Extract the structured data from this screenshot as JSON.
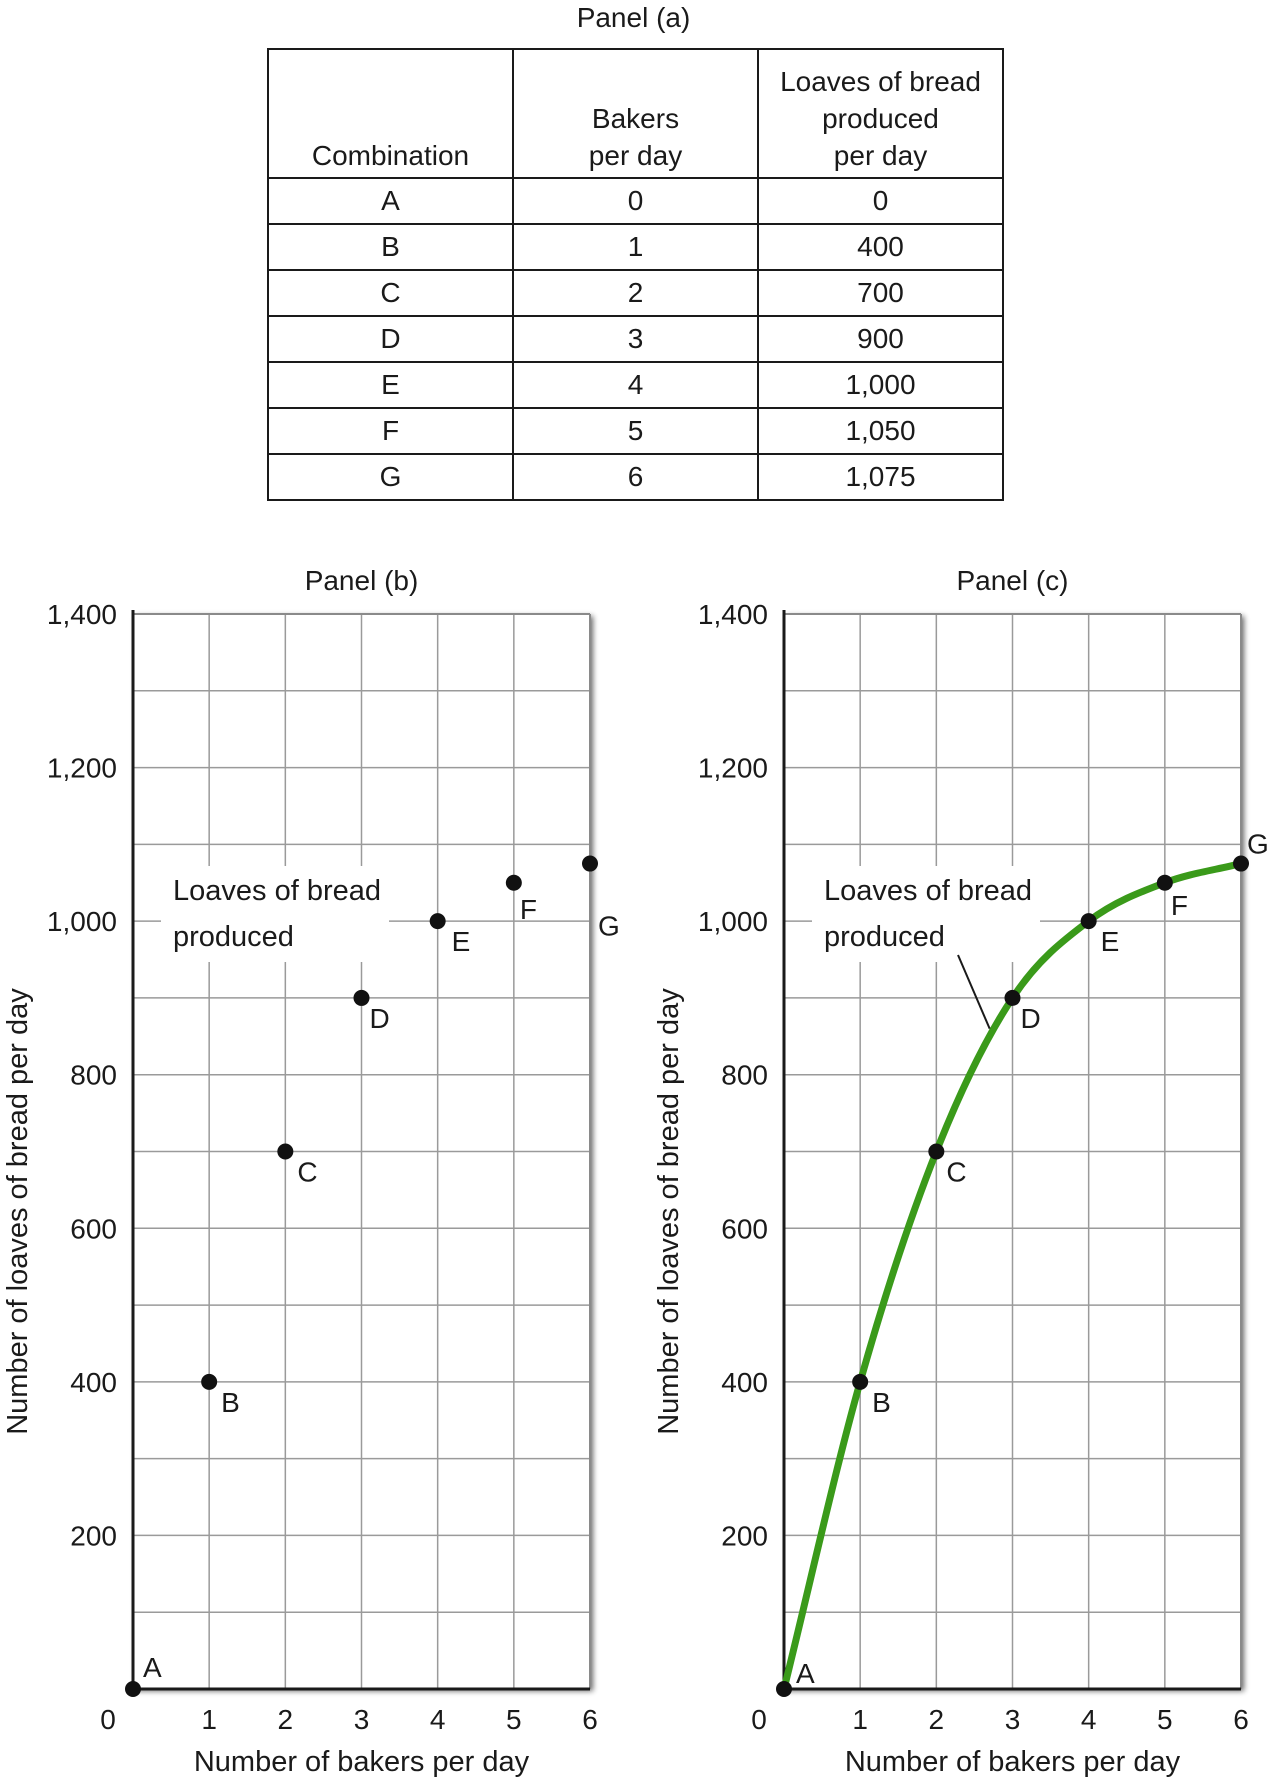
{
  "panel_a": {
    "title": "Panel (a)",
    "headers": [
      "Combination",
      "Bakers per day",
      "Loaves of bread produced per day"
    ],
    "header_lines": [
      [
        "Combination"
      ],
      [
        "Bakers",
        "per day"
      ],
      [
        "Loaves of bread",
        "produced",
        "per day"
      ]
    ],
    "rows": [
      [
        "A",
        "0",
        "0"
      ],
      [
        "B",
        "1",
        "400"
      ],
      [
        "C",
        "2",
        "700"
      ],
      [
        "D",
        "3",
        "900"
      ],
      [
        "E",
        "4",
        "1,000"
      ],
      [
        "F",
        "5",
        "1,050"
      ],
      [
        "G",
        "6",
        "1,075"
      ]
    ]
  },
  "chart_data": [
    {
      "type": "scatter",
      "title": "Panel (b)",
      "xlabel": "Number of bakers per day",
      "ylabel": "Number of loaves of bread per day",
      "xlim": [
        0,
        6
      ],
      "ylim": [
        0,
        1400
      ],
      "x_ticks": [
        "0",
        "1",
        "2",
        "3",
        "4",
        "5",
        "6"
      ],
      "y_ticks": [
        "200",
        "400",
        "600",
        "800",
        "1,000",
        "1,200",
        "1,400"
      ],
      "grid": true,
      "annotation": [
        "Loaves of bread",
        "produced"
      ],
      "points": [
        {
          "label": "A",
          "x": 0,
          "y": 0
        },
        {
          "label": "B",
          "x": 1,
          "y": 400
        },
        {
          "label": "C",
          "x": 2,
          "y": 700
        },
        {
          "label": "D",
          "x": 3,
          "y": 900
        },
        {
          "label": "E",
          "x": 4,
          "y": 1000
        },
        {
          "label": "F",
          "x": 5,
          "y": 1050
        },
        {
          "label": "G",
          "x": 6,
          "y": 1075
        }
      ]
    },
    {
      "type": "line",
      "title": "Panel (c)",
      "xlabel": "Number of bakers per day",
      "ylabel": "Number of loaves of bread per day",
      "xlim": [
        0,
        6
      ],
      "ylim": [
        0,
        1400
      ],
      "x_ticks": [
        "0",
        "1",
        "2",
        "3",
        "4",
        "5",
        "6"
      ],
      "y_ticks": [
        "200",
        "400",
        "600",
        "800",
        "1,000",
        "1,200",
        "1,400"
      ],
      "grid": true,
      "annotation": [
        "Loaves of bread",
        "produced"
      ],
      "line_color": "#3a9a1a",
      "points": [
        {
          "label": "A",
          "x": 0,
          "y": 0
        },
        {
          "label": "B",
          "x": 1,
          "y": 400
        },
        {
          "label": "C",
          "x": 2,
          "y": 700
        },
        {
          "label": "D",
          "x": 3,
          "y": 900
        },
        {
          "label": "E",
          "x": 4,
          "y": 1000
        },
        {
          "label": "F",
          "x": 5,
          "y": 1050
        },
        {
          "label": "G",
          "x": 6,
          "y": 1075
        }
      ]
    }
  ]
}
